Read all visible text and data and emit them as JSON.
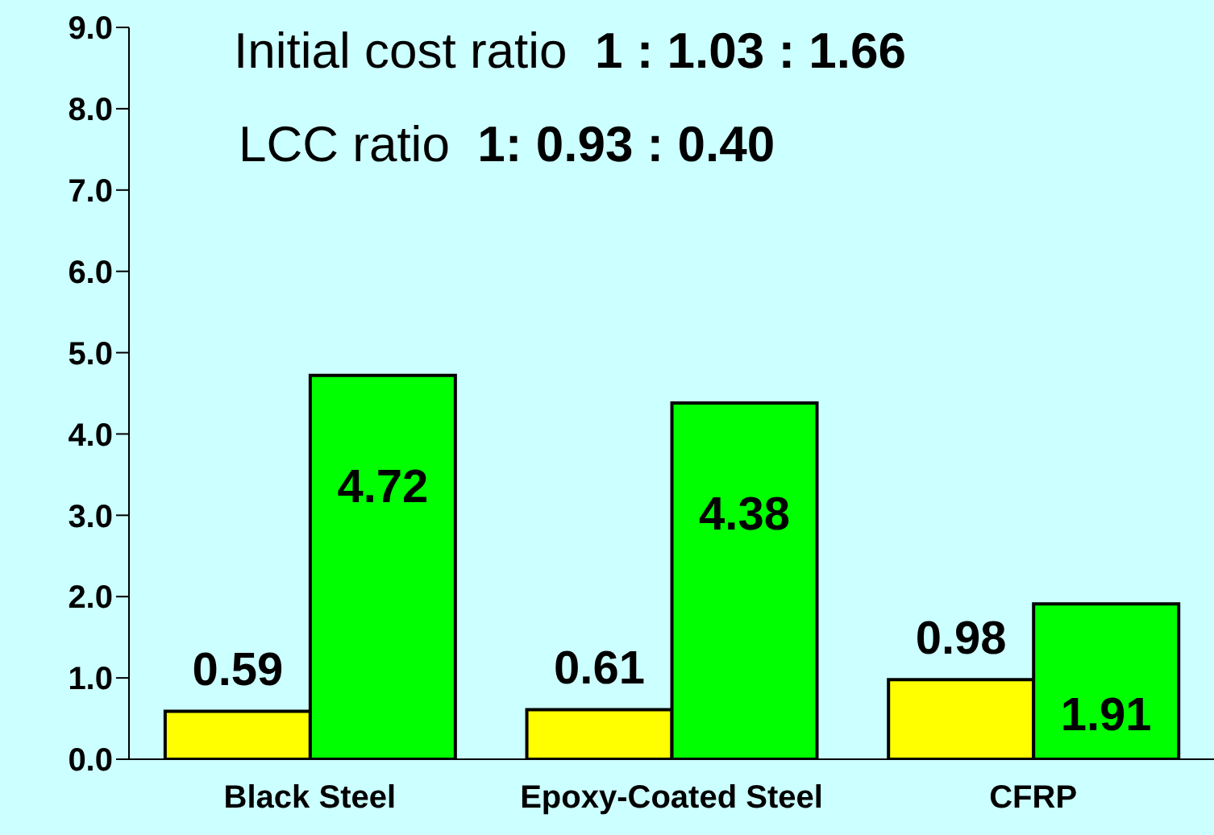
{
  "chart_data": {
    "type": "bar",
    "categories": [
      "Black Steel",
      "Epoxy-Coated Steel",
      "CFRP"
    ],
    "series": [
      {
        "color": "#ffff00",
        "values": [
          0.59,
          0.61,
          0.98
        ]
      },
      {
        "color": "#00ff00",
        "values": [
          4.72,
          4.38,
          1.91
        ]
      }
    ],
    "ylim": [
      0,
      9
    ],
    "yticks": [
      {
        "value": 0,
        "label": "0.0"
      },
      {
        "value": 1,
        "label": "1.0"
      },
      {
        "value": 2,
        "label": "2.0"
      },
      {
        "value": 3,
        "label": "3.0"
      },
      {
        "value": 4,
        "label": "4.0"
      },
      {
        "value": 5,
        "label": "5.0"
      },
      {
        "value": 6,
        "label": "6.0"
      },
      {
        "value": 7,
        "label": "7.0"
      },
      {
        "value": 8,
        "label": "8.0"
      },
      {
        "value": 9,
        "label": "9.0"
      }
    ],
    "data_labels": true,
    "grid": false,
    "legend": false,
    "annotations": [
      "Initial cost ratio  1 : 1.03 : 1.66",
      "LCC ratio  1: 0.93 : 0.40"
    ]
  }
}
